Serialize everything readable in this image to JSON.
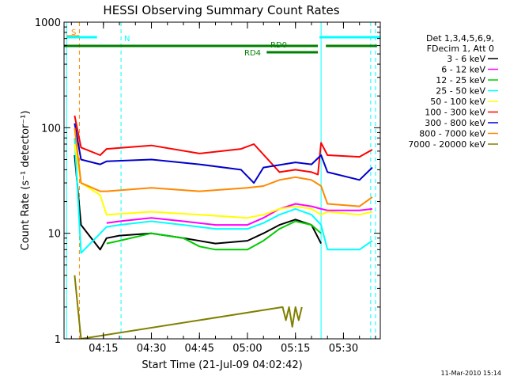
{
  "chart_data": {
    "type": "line",
    "title": "HESSI Observing Summary Count Rates",
    "ylabel": "Count Rate (s⁻¹ detector⁻¹)",
    "xlabel": "Start Time (21-Jul-09 04:02:42)",
    "yscale": "log",
    "ylim": [
      1,
      1000
    ],
    "xlim": [
      "04:02:42",
      "05:41:30"
    ],
    "xtick_labels": [
      "04:15",
      "04:30",
      "04:45",
      "05:00",
      "05:15",
      "05:30"
    ],
    "ytick_labels": [
      "1",
      "10",
      "100",
      "1000"
    ],
    "footer": "11-Mar-2010 15:14",
    "legend_header": [
      "Det 1,3,4,5,6,9,",
      "FDecim 1, Att 0"
    ],
    "legend_position": "right",
    "flag_labels": {
      "saa": "S",
      "night": "N",
      "rd0": "RD0",
      "rd4": "RD4"
    },
    "vertical_markers": [
      "04:03:30",
      "04:07:30",
      "04:20:30",
      "05:23:00",
      "05:38:30",
      "05:40:00"
    ],
    "series": [
      {
        "name": "3 - 6 keV",
        "color": "#000000",
        "x": [
          "04:06",
          "04:08",
          "04:14",
          "04:16",
          "04:20",
          "04:30",
          "04:40",
          "04:50",
          "05:00",
          "05:05",
          "05:10",
          "05:15",
          "05:20",
          "05:23"
        ],
        "values": [
          55,
          12,
          7,
          9,
          9.5,
          10,
          9,
          8,
          8.5,
          10,
          12,
          13.5,
          12,
          8
        ]
      },
      {
        "name": "6 - 12 keV",
        "color": "#ff00ff",
        "x": [
          "04:16",
          "04:20",
          "04:30",
          "04:40",
          "04:50",
          "05:00",
          "05:05",
          "05:10",
          "05:15",
          "05:20",
          "05:23",
          "05:25",
          "05:35",
          "05:39"
        ],
        "values": [
          12.5,
          13,
          14,
          13,
          12,
          12,
          14,
          17,
          19,
          18,
          17,
          16.5,
          16.5,
          17
        ]
      },
      {
        "name": "12 - 25 keV",
        "color": "#00cc00",
        "x": [
          "04:16",
          "04:20",
          "04:30",
          "04:40",
          "04:45",
          "04:50",
          "05:00",
          "05:05",
          "05:10",
          "05:15",
          "05:20",
          "05:23"
        ],
        "values": [
          8,
          8.5,
          10,
          9,
          7.5,
          7,
          7,
          8.5,
          11,
          13,
          12,
          10
        ]
      },
      {
        "name": "25 - 50 keV",
        "color": "#00ffff",
        "x": [
          "04:06",
          "04:08",
          "04:16",
          "04:20",
          "04:30",
          "04:40",
          "04:50",
          "05:00",
          "05:05",
          "05:10",
          "05:15",
          "05:20",
          "05:23",
          "05:25",
          "05:35",
          "05:39"
        ],
        "values": [
          80,
          6.5,
          11.5,
          12,
          13,
          12,
          11,
          11,
          12.5,
          15,
          17,
          15,
          12,
          7,
          7,
          8.5
        ]
      },
      {
        "name": "50 - 100 keV",
        "color": "#ffff00",
        "x": [
          "04:06",
          "04:08",
          "04:14",
          "04:16",
          "04:30",
          "04:45",
          "05:00",
          "05:05",
          "05:10",
          "05:15",
          "05:20",
          "05:23",
          "05:25",
          "05:35",
          "05:39"
        ],
        "values": [
          70,
          30,
          23,
          15,
          16,
          15,
          14,
          15,
          17,
          18,
          17,
          15,
          16,
          15,
          16
        ]
      },
      {
        "name": "100 - 300 keV",
        "color": "#ff0000",
        "x": [
          "04:06",
          "04:08",
          "04:14",
          "04:16",
          "04:30",
          "04:45",
          "04:58",
          "05:02",
          "05:10",
          "05:15",
          "05:20",
          "05:22",
          "05:23",
          "05:25",
          "05:35",
          "05:39"
        ],
        "values": [
          130,
          65,
          55,
          63,
          68,
          57,
          63,
          70,
          38,
          40,
          38,
          36,
          72,
          55,
          53,
          62
        ]
      },
      {
        "name": "300 - 800 keV",
        "color": "#0000cc",
        "x": [
          "04:06",
          "04:08",
          "04:14",
          "04:16",
          "04:30",
          "04:45",
          "04:58",
          "05:02",
          "05:05",
          "05:15",
          "05:20",
          "05:23",
          "05:25",
          "05:35",
          "05:39"
        ],
        "values": [
          110,
          50,
          45,
          48,
          50,
          45,
          40,
          30,
          42,
          47,
          45,
          55,
          38,
          32,
          42
        ]
      },
      {
        "name": "800 - 7000 keV",
        "color": "#ff8800",
        "x": [
          "04:06",
          "04:08",
          "04:14",
          "04:16",
          "04:30",
          "04:45",
          "05:00",
          "05:05",
          "05:10",
          "05:15",
          "05:20",
          "05:23",
          "05:25",
          "05:35",
          "05:39"
        ],
        "values": [
          100,
          30,
          25,
          25,
          27,
          25,
          27,
          28,
          32,
          34,
          32,
          28,
          19,
          18,
          22
        ]
      },
      {
        "name": "7000 - 20000 keV",
        "color": "#808000",
        "x": [
          "04:06",
          "04:07",
          "04:08",
          "05:11",
          "05:12",
          "05:13",
          "05:14",
          "05:15",
          "05:16",
          "05:17"
        ],
        "values": [
          4,
          2,
          1,
          2,
          1.5,
          2,
          1.3,
          2,
          1.5,
          2
        ]
      }
    ]
  }
}
